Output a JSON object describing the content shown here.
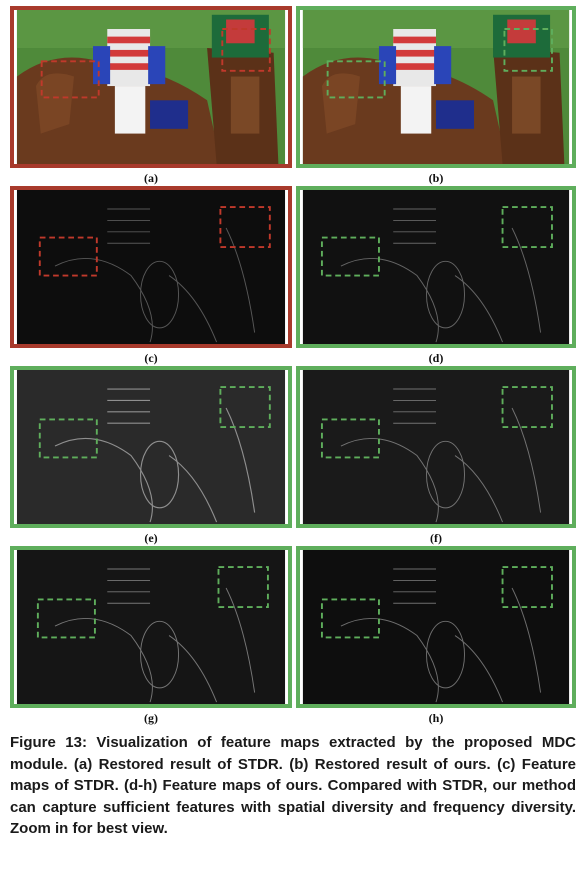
{
  "figure": {
    "panel_labels": [
      "(a)",
      "(b)",
      "(c)",
      "(d)",
      "(e)",
      "(f)",
      "(g)",
      "(h)"
    ],
    "caption": "Figure 13: Visualization of feature maps extracted by the proposed MDC module. (a) Restored result of STDR. (b) Restored result of ours. (c) Feature maps of STDR. (d-h) Feature maps of ours. Compared with STDR, our method can capture sufficient features with spatial diversity and frequency diversity. Zoom in for best view.",
    "colors": {
      "red_frame": "#a83a2c",
      "green_frame": "#5fae5c",
      "red_box": "#c0392b",
      "green_box": "#5fae5c"
    }
  }
}
